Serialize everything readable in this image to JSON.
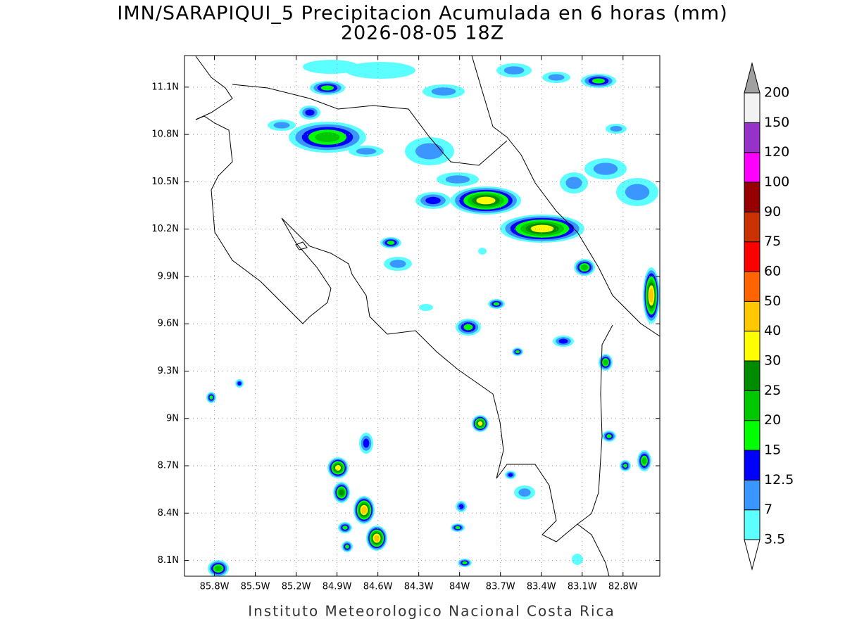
{
  "header": {
    "title": "IMN/SARAPIQUI_5 Precipitacion Acumulada en 6 horas (mm)",
    "subtitle": "2026-08-05 18Z"
  },
  "map": {
    "xlim": [
      -86.02,
      -82.53
    ],
    "ylim": [
      8.0,
      11.3
    ],
    "grid": true,
    "xticks": [
      {
        "value": -85.8,
        "label": "85.8W"
      },
      {
        "value": -85.5,
        "label": "85.5W"
      },
      {
        "value": -85.2,
        "label": "85.2W"
      },
      {
        "value": -84.9,
        "label": "84.9W"
      },
      {
        "value": -84.6,
        "label": "84.6W"
      },
      {
        "value": -84.3,
        "label": "84.3W"
      },
      {
        "value": -84,
        "label": "84W"
      },
      {
        "value": -83.7,
        "label": "83.7W"
      },
      {
        "value": -83.4,
        "label": "83.4W"
      },
      {
        "value": -83.1,
        "label": "83.1W"
      },
      {
        "value": -82.8,
        "label": "82.8W"
      }
    ],
    "yticks": [
      {
        "value": 8.1,
        "label": "8.1N"
      },
      {
        "value": 8.4,
        "label": "8.4N"
      },
      {
        "value": 8.7,
        "label": "8.7N"
      },
      {
        "value": 9,
        "label": "9N"
      },
      {
        "value": 9.3,
        "label": "9.3N"
      },
      {
        "value": 9.6,
        "label": "9.6N"
      },
      {
        "value": 9.9,
        "label": "9.9N"
      },
      {
        "value": 10.2,
        "label": "10.2N"
      },
      {
        "value": 10.5,
        "label": "10.5N"
      },
      {
        "value": 10.8,
        "label": "10.8N"
      },
      {
        "value": 11.1,
        "label": "11.1N"
      }
    ]
  },
  "colorbar": {
    "levels": [
      3.5,
      7,
      12.5,
      15,
      20,
      25,
      30,
      40,
      50,
      60,
      75,
      90,
      100,
      120,
      150,
      200
    ],
    "colors": [
      "#5cffff",
      "#3c96ff",
      "#0000ff",
      "#00ff00",
      "#00c800",
      "#008c00",
      "#ffff00",
      "#ffc800",
      "#ff6400",
      "#ff0000",
      "#c83200",
      "#960000",
      "#ff00ff",
      "#9632c8",
      "#f2f2f2"
    ],
    "under_color": "#ffffff",
    "over_color": "#a0a0a0"
  },
  "footer": "Instituto Meteorologico Nacional Costa Rica"
}
